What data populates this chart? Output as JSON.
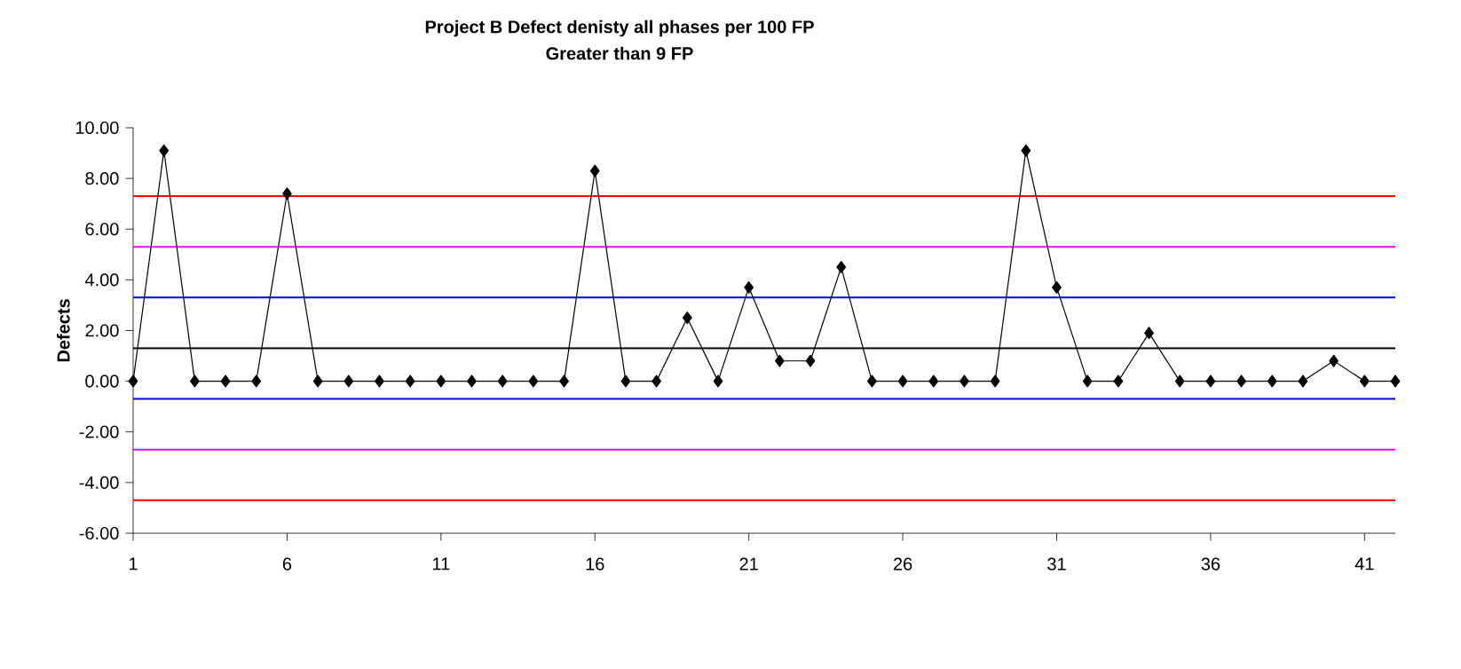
{
  "chart_data": {
    "type": "line",
    "title": "Project B Defect denisty all phases per 100 FP",
    "subtitle": "Greater than 9 FP",
    "ylabel": "Defects",
    "x": [
      1,
      2,
      3,
      4,
      5,
      6,
      7,
      8,
      9,
      10,
      11,
      12,
      13,
      14,
      15,
      16,
      17,
      18,
      19,
      20,
      21,
      22,
      23,
      24,
      25,
      26,
      27,
      28,
      29,
      30,
      31,
      32,
      33,
      34,
      35,
      36,
      37,
      38,
      39,
      40,
      41,
      42
    ],
    "series": [
      {
        "color": "#000000",
        "values": [
          0,
          9.1,
          0,
          0,
          0,
          7.4,
          0,
          0,
          0,
          0,
          0,
          0,
          0,
          0,
          0,
          8.3,
          0,
          0,
          2.5,
          0,
          3.7,
          0.8,
          0.8,
          4.5,
          0,
          0,
          0,
          0,
          0,
          9.1,
          3.7,
          0,
          0,
          1.9,
          0,
          0,
          0,
          0,
          0,
          0.8,
          0,
          0
        ]
      }
    ],
    "marker": "diamond",
    "line_style": "solid",
    "grid": false,
    "xlim": [
      1,
      42
    ],
    "xticks": [
      1,
      6,
      11,
      16,
      21,
      26,
      31,
      36,
      41
    ],
    "ylim": [
      -6,
      10
    ],
    "yticks": [
      {
        "value": -6,
        "label": "-6.00"
      },
      {
        "value": -4,
        "label": "-4.00"
      },
      {
        "value": -2,
        "label": "-2.00"
      },
      {
        "value": 0,
        "label": "0.00"
      },
      {
        "value": 2,
        "label": "2.00"
      },
      {
        "value": 4,
        "label": "4.00"
      },
      {
        "value": 6,
        "label": "6.00"
      },
      {
        "value": 8,
        "label": "8.00"
      },
      {
        "value": 10,
        "label": "10.00"
      }
    ],
    "ref_lines": [
      {
        "axis": "y",
        "value": 7.3,
        "color": "#ff0000"
      },
      {
        "axis": "y",
        "value": 5.3,
        "color": "#ff00ff"
      },
      {
        "axis": "y",
        "value": 3.3,
        "color": "#0000ff"
      },
      {
        "axis": "y",
        "value": 1.3,
        "color": "#000000"
      },
      {
        "axis": "y",
        "value": -0.7,
        "color": "#0000ff"
      },
      {
        "axis": "y",
        "value": -2.7,
        "color": "#ff00ff"
      },
      {
        "axis": "y",
        "value": -4.7,
        "color": "#ff0000"
      }
    ]
  }
}
